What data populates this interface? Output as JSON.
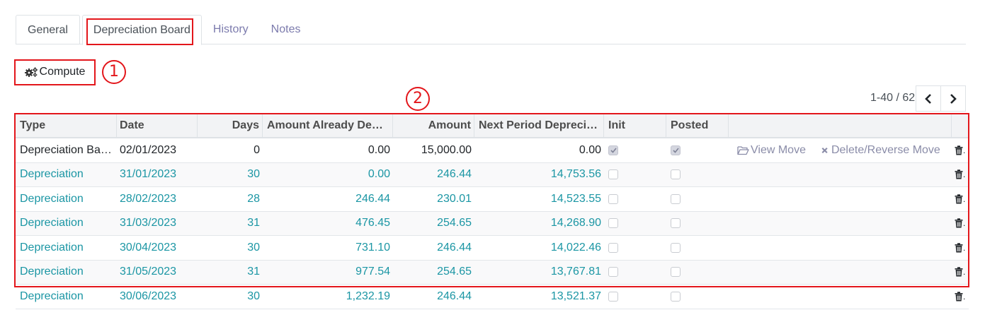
{
  "tabs": [
    {
      "label": "General"
    },
    {
      "label": "Depreciation Board"
    },
    {
      "label": "History"
    },
    {
      "label": "Notes"
    }
  ],
  "toolbar": {
    "compute_label": "Compute"
  },
  "annotations": {
    "one": "1",
    "two": "2"
  },
  "pager": {
    "text": "1-40 / 62"
  },
  "table": {
    "headers": {
      "type": "Type",
      "date": "Date",
      "days": "Days",
      "already": "Amount Already De…",
      "amount": "Amount",
      "next": "Next Period Depreci…",
      "init": "Init",
      "posted": "Posted"
    },
    "actions": {
      "view_move": "View Move",
      "delete_move": "Delete/Reverse Move"
    },
    "rows": [
      {
        "type": "Depreciation Ba…",
        "date": "02/01/2023",
        "days": "0",
        "already": "0.00",
        "amount": "15,000.00",
        "next": "0.00",
        "init": true,
        "posted": true
      },
      {
        "type": "Depreciation",
        "date": "31/01/2023",
        "days": "30",
        "already": "0.00",
        "amount": "246.44",
        "next": "14,753.56",
        "init": false,
        "posted": false
      },
      {
        "type": "Depreciation",
        "date": "28/02/2023",
        "days": "28",
        "already": "246.44",
        "amount": "230.01",
        "next": "14,523.55",
        "init": false,
        "posted": false
      },
      {
        "type": "Depreciation",
        "date": "31/03/2023",
        "days": "31",
        "already": "476.45",
        "amount": "254.65",
        "next": "14,268.90",
        "init": false,
        "posted": false
      },
      {
        "type": "Depreciation",
        "date": "30/04/2023",
        "days": "30",
        "already": "731.10",
        "amount": "246.44",
        "next": "14,022.46",
        "init": false,
        "posted": false
      },
      {
        "type": "Depreciation",
        "date": "31/05/2023",
        "days": "31",
        "already": "977.54",
        "amount": "254.65",
        "next": "13,767.81",
        "init": false,
        "posted": false
      },
      {
        "type": "Depreciation",
        "date": "30/06/2023",
        "days": "30",
        "already": "1,232.19",
        "amount": "246.44",
        "next": "13,521.37",
        "init": false,
        "posted": false
      }
    ]
  },
  "colors": {
    "annotation": "#e3161b",
    "link": "#1b96a4",
    "muted_action": "#8a8ca8"
  }
}
